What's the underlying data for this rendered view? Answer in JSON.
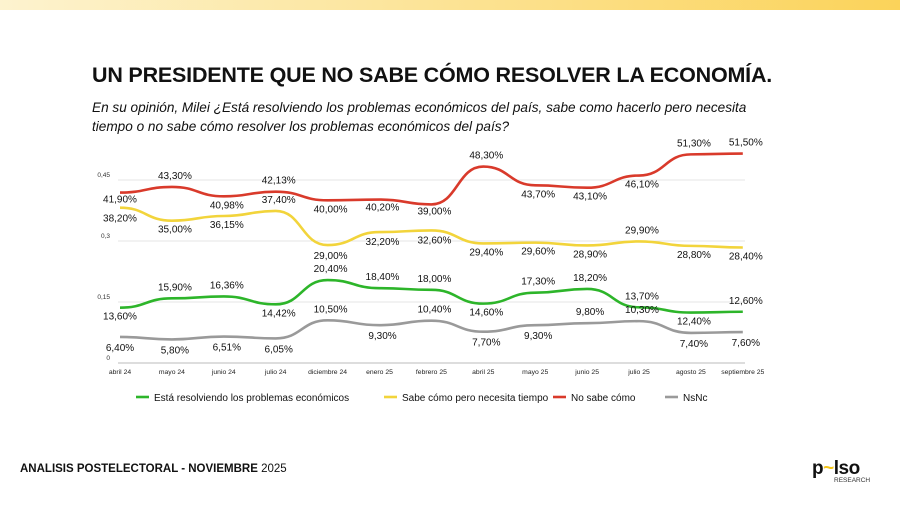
{
  "header": {
    "title": "UN PRESIDENTE QUE NO SABE CÓMO RESOLVER LA ECONOMÍA.",
    "subtitle": "En su opinión, Milei ¿Está resolviendo los problemas económicos del país, sabe como hacerlo pero necesita tiempo o no sabe cómo resolver los problemas económicos del país?"
  },
  "footer": {
    "bold": "ANALISIS POSTELECTORAL - NOVIEMBRE",
    "year": "2025"
  },
  "logo": {
    "word": "pulso",
    "sub": "RESEARCH",
    "accent": "#f5c518"
  },
  "chart_data": {
    "type": "line",
    "categories": [
      "abril 24",
      "mayo 24",
      "junio 24",
      "julio 24",
      "diciembre 24",
      "enero 25",
      "febrero 25",
      "abril 25",
      "mayo 25",
      "junio 25",
      "julio 25",
      "agosto 25",
      "septiembre 25"
    ],
    "yticks": [
      0,
      0.15,
      0.3,
      0.45
    ],
    "ytick_labels": [
      "0",
      "0,15",
      "0,3",
      "0,45"
    ],
    "ylim": [
      0,
      0.55
    ],
    "grid": true,
    "legend_placement": "bottom",
    "series": [
      {
        "name": "Está resolviendo los problemas económicos",
        "color": "#2db52a",
        "values": [
          13.6,
          15.9,
          16.36,
          14.42,
          20.4,
          18.4,
          18.0,
          14.6,
          17.3,
          18.2,
          13.7,
          12.4,
          12.6
        ],
        "labels": [
          "13,60%",
          "15,90%",
          "16,36%",
          "14,42%",
          "20,40%",
          "18,40%",
          "18,00%",
          "14,60%",
          "17,30%",
          "18,20%",
          "13,70%",
          "12,40%",
          "12,60%"
        ]
      },
      {
        "name": "Sabe cómo pero necesita tiempo",
        "color": "#f2d43b",
        "values": [
          38.2,
          35.0,
          36.15,
          37.4,
          29.0,
          32.2,
          32.6,
          29.4,
          29.6,
          28.9,
          29.9,
          28.8,
          28.4
        ],
        "labels": [
          "38,20%",
          "35,00%",
          "36,15%",
          "37,40%",
          "29,00%",
          "32,20%",
          "32,60%",
          "29,40%",
          "29,60%",
          "28,90%",
          "29,90%",
          "28,80%",
          "28,40%"
        ]
      },
      {
        "name": "No sabe cómo",
        "color": "#d93a2b",
        "values": [
          41.9,
          43.3,
          40.98,
          42.13,
          40.0,
          40.2,
          39.0,
          48.3,
          43.7,
          43.1,
          46.1,
          51.3,
          51.5
        ],
        "labels": [
          "41,90%",
          "43,30%",
          "40,98%",
          "42,13%",
          "40,00%",
          "40,20%",
          "39,00%",
          "48,30%",
          "43,70%",
          "43,10%",
          "46,10%",
          "51,30%",
          "51,50%"
        ]
      },
      {
        "name": "NsNc",
        "color": "#9a9a9a",
        "values": [
          6.4,
          5.8,
          6.51,
          6.05,
          10.5,
          9.3,
          10.4,
          7.7,
          9.3,
          9.8,
          10.3,
          7.4,
          7.6
        ],
        "labels": [
          "6,40%",
          "5,80%",
          "6,51%",
          "6,05%",
          "10,50%",
          "9,30%",
          "10,40%",
          "7,70%",
          "9,30%",
          "9,80%",
          "10,30%",
          "7,40%",
          "7,60%"
        ]
      }
    ]
  }
}
